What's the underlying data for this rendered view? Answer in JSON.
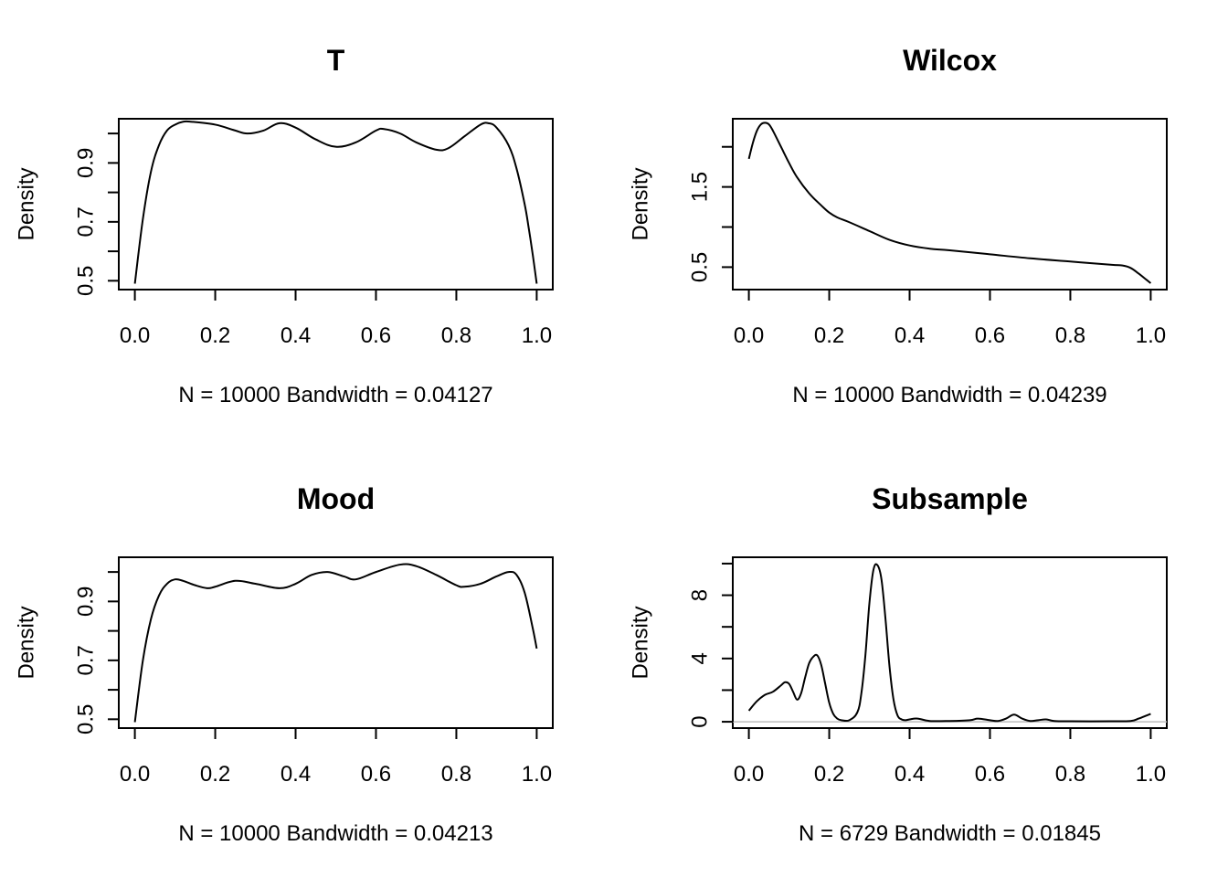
{
  "chart_data": [
    {
      "type": "line",
      "title": "T",
      "xlabel": "N = 10000   Bandwidth = 0.04127",
      "ylabel": "Density",
      "xlim": [
        -0.04,
        1.04
      ],
      "ylim": [
        0.47,
        1.05
      ],
      "x_ticks": [
        "0.0",
        "0.2",
        "0.4",
        "0.6",
        "0.8",
        "1.0"
      ],
      "x_tick_values": [
        0,
        0.2,
        0.4,
        0.6,
        0.8,
        1.0
      ],
      "y_ticks": [
        0.5,
        0.6,
        0.7,
        0.8,
        0.9,
        1.0
      ],
      "y_tick_labels": [
        "0.5",
        "",
        "0.7",
        "",
        "0.9",
        ""
      ],
      "zero_line": false,
      "series": [
        {
          "x": [
            0.0,
            0.02,
            0.04,
            0.06,
            0.08,
            0.1,
            0.12,
            0.14,
            0.2,
            0.25,
            0.28,
            0.32,
            0.36,
            0.4,
            0.45,
            0.5,
            0.55,
            0.6,
            0.62,
            0.66,
            0.7,
            0.75,
            0.78,
            0.82,
            0.86,
            0.88,
            0.9,
            0.93,
            0.95,
            0.97,
            0.98,
            0.99,
            1.0
          ],
          "y": [
            0.49,
            0.71,
            0.87,
            0.96,
            1.01,
            1.03,
            1.04,
            1.04,
            1.03,
            1.01,
            1.0,
            1.01,
            1.035,
            1.02,
            0.98,
            0.955,
            0.97,
            1.01,
            1.015,
            1.0,
            0.97,
            0.945,
            0.95,
            0.99,
            1.03,
            1.035,
            1.02,
            0.96,
            0.88,
            0.76,
            0.68,
            0.59,
            0.49
          ]
        }
      ]
    },
    {
      "type": "line",
      "title": "Wilcox",
      "xlabel": "N = 10000   Bandwidth = 0.04239",
      "ylabel": "Density",
      "xlim": [
        -0.04,
        1.04
      ],
      "ylim": [
        0.22,
        2.35
      ],
      "x_ticks": [
        "0.0",
        "0.2",
        "0.4",
        "0.6",
        "0.8",
        "1.0"
      ],
      "x_tick_values": [
        0,
        0.2,
        0.4,
        0.6,
        0.8,
        1.0
      ],
      "y_ticks": [
        0.5,
        1.0,
        1.5,
        2.0
      ],
      "y_tick_labels": [
        "0.5",
        "",
        "1.5",
        ""
      ],
      "zero_line": false,
      "series": [
        {
          "x": [
            0.0,
            0.01,
            0.02,
            0.03,
            0.04,
            0.05,
            0.06,
            0.08,
            0.1,
            0.12,
            0.15,
            0.18,
            0.2,
            0.22,
            0.25,
            0.3,
            0.35,
            0.4,
            0.45,
            0.5,
            0.6,
            0.7,
            0.8,
            0.9,
            0.93,
            0.95,
            0.97,
            0.99,
            1.0
          ],
          "y": [
            1.85,
            2.05,
            2.2,
            2.28,
            2.3,
            2.28,
            2.2,
            2.0,
            1.8,
            1.62,
            1.42,
            1.27,
            1.18,
            1.12,
            1.06,
            0.95,
            0.84,
            0.77,
            0.73,
            0.71,
            0.66,
            0.61,
            0.57,
            0.53,
            0.52,
            0.49,
            0.42,
            0.34,
            0.3
          ]
        }
      ]
    },
    {
      "type": "line",
      "title": "Mood",
      "xlabel": "N = 10000   Bandwidth = 0.04213",
      "ylabel": "Density",
      "xlim": [
        -0.04,
        1.04
      ],
      "ylim": [
        0.47,
        1.05
      ],
      "x_ticks": [
        "0.0",
        "0.2",
        "0.4",
        "0.6",
        "0.8",
        "1.0"
      ],
      "x_tick_values": [
        0,
        0.2,
        0.4,
        0.6,
        0.8,
        1.0
      ],
      "y_ticks": [
        0.5,
        0.6,
        0.7,
        0.8,
        0.9,
        1.0
      ],
      "y_tick_labels": [
        "0.5",
        "",
        "0.7",
        "",
        "0.9",
        ""
      ],
      "zero_line": false,
      "series": [
        {
          "x": [
            0.0,
            0.02,
            0.04,
            0.06,
            0.08,
            0.1,
            0.12,
            0.15,
            0.18,
            0.2,
            0.25,
            0.3,
            0.36,
            0.4,
            0.44,
            0.48,
            0.52,
            0.55,
            0.6,
            0.66,
            0.7,
            0.75,
            0.8,
            0.82,
            0.86,
            0.9,
            0.93,
            0.95,
            0.97,
            0.99,
            1.0
          ],
          "y": [
            0.49,
            0.7,
            0.84,
            0.92,
            0.96,
            0.975,
            0.97,
            0.955,
            0.945,
            0.95,
            0.97,
            0.96,
            0.945,
            0.96,
            0.99,
            1.0,
            0.985,
            0.975,
            1.0,
            1.025,
            1.02,
            0.99,
            0.955,
            0.95,
            0.96,
            0.985,
            1.0,
            0.99,
            0.93,
            0.81,
            0.74
          ]
        }
      ]
    },
    {
      "type": "line",
      "title": "Subsample",
      "xlabel": "N = 6729   Bandwidth = 0.01845",
      "ylabel": "Density",
      "xlim": [
        -0.04,
        1.04
      ],
      "ylim": [
        -0.4,
        10.4
      ],
      "x_ticks": [
        "0.0",
        "0.2",
        "0.4",
        "0.6",
        "0.8",
        "1.0"
      ],
      "x_tick_values": [
        0,
        0.2,
        0.4,
        0.6,
        0.8,
        1.0
      ],
      "y_ticks": [
        0,
        2,
        4,
        6,
        8,
        10
      ],
      "y_tick_labels": [
        "0",
        "",
        "4",
        "",
        "8",
        ""
      ],
      "zero_line": true,
      "series": [
        {
          "x": [
            0.0,
            0.02,
            0.04,
            0.06,
            0.08,
            0.09,
            0.1,
            0.11,
            0.12,
            0.13,
            0.14,
            0.15,
            0.16,
            0.17,
            0.18,
            0.19,
            0.2,
            0.21,
            0.22,
            0.23,
            0.25,
            0.27,
            0.28,
            0.29,
            0.3,
            0.31,
            0.32,
            0.33,
            0.34,
            0.35,
            0.36,
            0.37,
            0.38,
            0.39,
            0.4,
            0.42,
            0.45,
            0.5,
            0.55,
            0.57,
            0.6,
            0.62,
            0.64,
            0.66,
            0.68,
            0.7,
            0.72,
            0.74,
            0.76,
            0.8,
            0.9,
            0.95,
            0.97,
            0.99,
            1.0
          ],
          "y": [
            0.7,
            1.3,
            1.7,
            1.9,
            2.3,
            2.5,
            2.4,
            1.9,
            1.4,
            1.8,
            2.8,
            3.7,
            4.1,
            4.2,
            3.6,
            2.4,
            1.2,
            0.5,
            0.2,
            0.1,
            0.1,
            0.6,
            1.8,
            4.2,
            7.5,
            9.6,
            9.9,
            9.0,
            6.5,
            3.5,
            1.4,
            0.4,
            0.15,
            0.1,
            0.15,
            0.2,
            0.05,
            0.05,
            0.1,
            0.2,
            0.1,
            0.05,
            0.2,
            0.45,
            0.2,
            0.05,
            0.1,
            0.15,
            0.05,
            0.03,
            0.03,
            0.05,
            0.2,
            0.4,
            0.5
          ]
        }
      ]
    }
  ]
}
